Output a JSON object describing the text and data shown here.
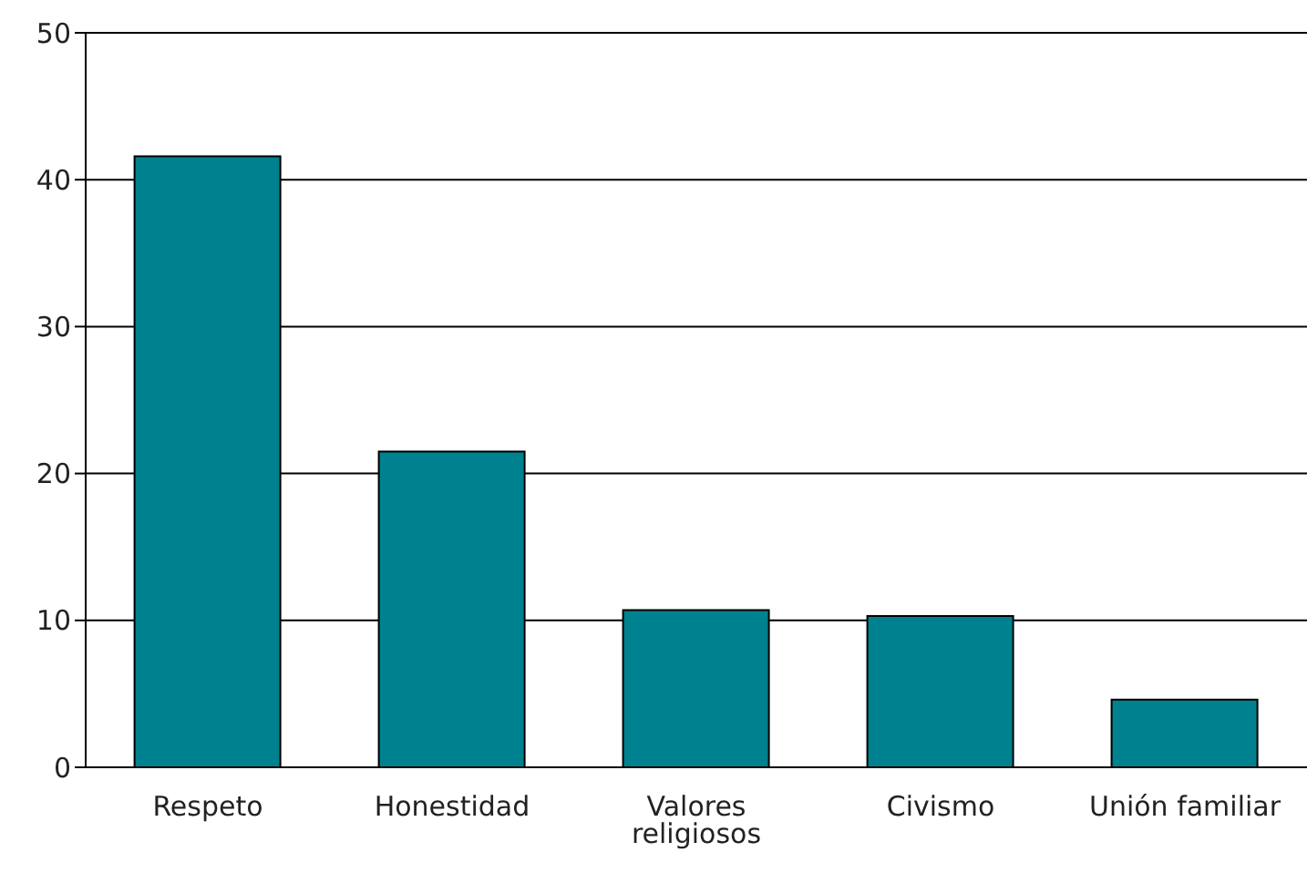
{
  "chart_data": {
    "type": "bar",
    "categories": [
      "Respeto",
      "Honestidad",
      "Valores religiosos",
      "Civismo",
      "Unión familiar"
    ],
    "values": [
      41.6,
      21.5,
      10.7,
      10.3,
      4.6
    ],
    "color": "#00818f",
    "ylim": [
      0,
      50
    ],
    "yticks": [
      0,
      10,
      20,
      30,
      40,
      50
    ],
    "grid": "y"
  }
}
